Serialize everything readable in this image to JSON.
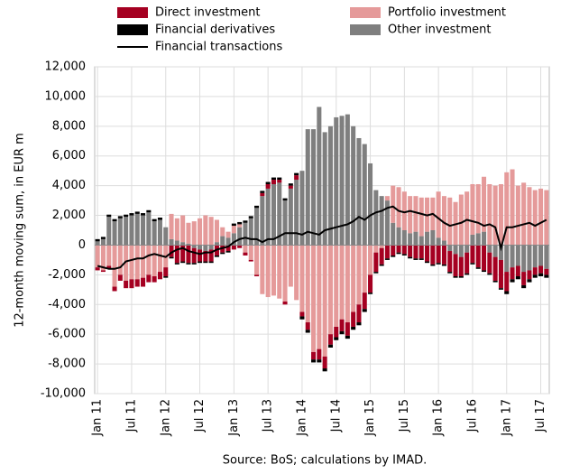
{
  "chart_data": {
    "type": "bar",
    "y_label": "12-month moving sum, in EUR m",
    "source": "Source: BoS; calculations by IMAD.",
    "categories": [
      "Jan 11",
      null,
      null,
      null,
      null,
      null,
      "Jul 11",
      null,
      null,
      null,
      null,
      null,
      "Jan 12",
      null,
      null,
      null,
      null,
      null,
      "Jul 12",
      null,
      null,
      null,
      null,
      null,
      "Jan 13",
      null,
      null,
      null,
      null,
      null,
      "Jul 13",
      null,
      null,
      null,
      null,
      null,
      "Jan 14",
      null,
      null,
      null,
      null,
      null,
      "Jul 14",
      null,
      null,
      null,
      null,
      null,
      "Jan 15",
      null,
      null,
      null,
      null,
      null,
      "Jul 15",
      null,
      null,
      null,
      null,
      null,
      "Jan 16",
      null,
      null,
      null,
      null,
      null,
      "Jul 16",
      null,
      null,
      null,
      null,
      null,
      "Jan 17",
      null,
      null,
      null,
      null,
      null,
      "Jul 17",
      null
    ],
    "series": [
      {
        "name": "Direct investment",
        "color": "#a50021",
        "values": [
          -200,
          -100,
          -200,
          -300,
          -400,
          -500,
          -600,
          -500,
          -600,
          -500,
          -400,
          -500,
          -600,
          -800,
          -1200,
          -1100,
          -1200,
          -1000,
          -800,
          -700,
          -800,
          -700,
          -500,
          -400,
          -300,
          -200,
          -200,
          -100,
          -100,
          200,
          300,
          300,
          200,
          -200,
          200,
          300,
          -300,
          -500,
          -500,
          -700,
          -800,
          -700,
          -700,
          -800,
          -900,
          -1000,
          -1200,
          -1100,
          -1200,
          -1300,
          -1100,
          -900,
          -700,
          -500,
          -600,
          -800,
          -900,
          -900,
          -1100,
          -1300,
          -1200,
          -1300,
          -1400,
          -1500,
          -1300,
          -1400,
          -1200,
          -1500,
          -1700,
          -1400,
          -1600,
          -1900,
          -1300,
          -800,
          -700,
          -900,
          -600,
          -500,
          -500,
          -400
        ]
      },
      {
        "name": "Portfolio investment",
        "color": "#e59a9a",
        "values": [
          -1500,
          -1700,
          -1400,
          -2800,
          -2000,
          -2400,
          -2300,
          -2300,
          -2200,
          -2000,
          -2100,
          -1800,
          -1500,
          1700,
          1500,
          1800,
          1400,
          1600,
          1800,
          2000,
          1900,
          1500,
          600,
          400,
          500,
          200,
          -500,
          -1000,
          -2000,
          -3300,
          -3500,
          -3400,
          -3600,
          -3800,
          -2800,
          -3700,
          -4500,
          -5200,
          -7200,
          -7000,
          -7500,
          -6000,
          -5500,
          -5000,
          -5200,
          -4500,
          -4000,
          -3200,
          -2000,
          -500,
          -200,
          300,
          2500,
          2700,
          2600,
          2500,
          2400,
          2600,
          2300,
          2200,
          3100,
          3000,
          3200,
          2900,
          3400,
          3600,
          3400,
          3300,
          3700,
          4100,
          4000,
          4100,
          4900,
          5100,
          4000,
          4200,
          3900,
          3700,
          3800,
          3700
        ]
      },
      {
        "name": "Financial derivatives",
        "color": "#000000",
        "values": [
          150,
          150,
          150,
          150,
          150,
          150,
          150,
          150,
          150,
          150,
          150,
          150,
          -100,
          -100,
          -100,
          -100,
          -100,
          -100,
          -100,
          -100,
          -100,
          -100,
          -100,
          -100,
          150,
          150,
          150,
          150,
          150,
          150,
          150,
          150,
          150,
          150,
          150,
          150,
          -200,
          -200,
          -200,
          -200,
          -200,
          -200,
          -200,
          -200,
          -200,
          -200,
          -200,
          -200,
          -100,
          -100,
          -100,
          -100,
          -100,
          -100,
          -100,
          -100,
          -100,
          -100,
          -100,
          -100,
          -100,
          -100,
          -100,
          -100,
          -100,
          -100,
          -100,
          -100,
          -100,
          -100,
          -100,
          -100,
          -200,
          -200,
          -200,
          -200,
          -200,
          -200,
          -200,
          -200
        ]
      },
      {
        "name": "Other investment",
        "color": "#7f7f7f",
        "values": [
          250,
          400,
          1900,
          1600,
          1800,
          1900,
          2000,
          2100,
          2000,
          2200,
          1600,
          1700,
          1200,
          400,
          300,
          200,
          100,
          -200,
          -300,
          -400,
          -300,
          200,
          600,
          500,
          800,
          1200,
          1500,
          1800,
          2500,
          3300,
          3800,
          4100,
          4200,
          3000,
          3800,
          4400,
          5000,
          7800,
          7800,
          9300,
          7600,
          8000,
          8600,
          8700,
          8800,
          8000,
          7200,
          6800,
          5500,
          3700,
          3300,
          3000,
          1500,
          1200,
          1000,
          800,
          900,
          600,
          900,
          1000,
          500,
          300,
          -400,
          -600,
          -800,
          -500,
          700,
          800,
          900,
          -500,
          -800,
          -1000,
          -1800,
          -1500,
          -1400,
          -1800,
          -1700,
          -1500,
          -1400,
          -1600
        ]
      }
    ],
    "line": {
      "name": "Financial transactions",
      "color": "#000000",
      "values": [
        -1400,
        -1500,
        -1600,
        -1600,
        -1500,
        -1100,
        -1000,
        -900,
        -900,
        -700,
        -600,
        -700,
        -800,
        -500,
        -300,
        -200,
        -400,
        -500,
        -600,
        -500,
        -500,
        -300,
        -200,
        -100,
        200,
        400,
        500,
        400,
        400,
        200,
        400,
        400,
        600,
        800,
        800,
        800,
        700,
        900,
        800,
        700,
        1000,
        1100,
        1200,
        1300,
        1400,
        1600,
        1900,
        1700,
        2000,
        2200,
        2300,
        2500,
        2600,
        2300,
        2200,
        2300,
        2200,
        2100,
        2000,
        2100,
        1800,
        1500,
        1300,
        1400,
        1500,
        1700,
        1600,
        1500,
        1300,
        1400,
        1200,
        -200,
        1200,
        1200,
        1300,
        1400,
        1500,
        1300,
        1500,
        1700
      ]
    },
    "ylim": [
      -10000,
      12000
    ],
    "yticks": [
      {
        "value": -10000,
        "label": "-10,000"
      },
      {
        "value": -8000,
        "label": "-8,000"
      },
      {
        "value": -6000,
        "label": "-6,000"
      },
      {
        "value": -4000,
        "label": "-4,000"
      },
      {
        "value": -2000,
        "label": "-2,000"
      },
      0,
      {
        "value": 2000,
        "label": "2,000"
      },
      {
        "value": 4000,
        "label": "4,000"
      },
      {
        "value": 6000,
        "label": "6,000"
      },
      {
        "value": 8000,
        "label": "8,000"
      },
      {
        "value": 10000,
        "label": "10,000"
      },
      {
        "value": 12000,
        "label": "12,000"
      }
    ],
    "grid": true
  }
}
